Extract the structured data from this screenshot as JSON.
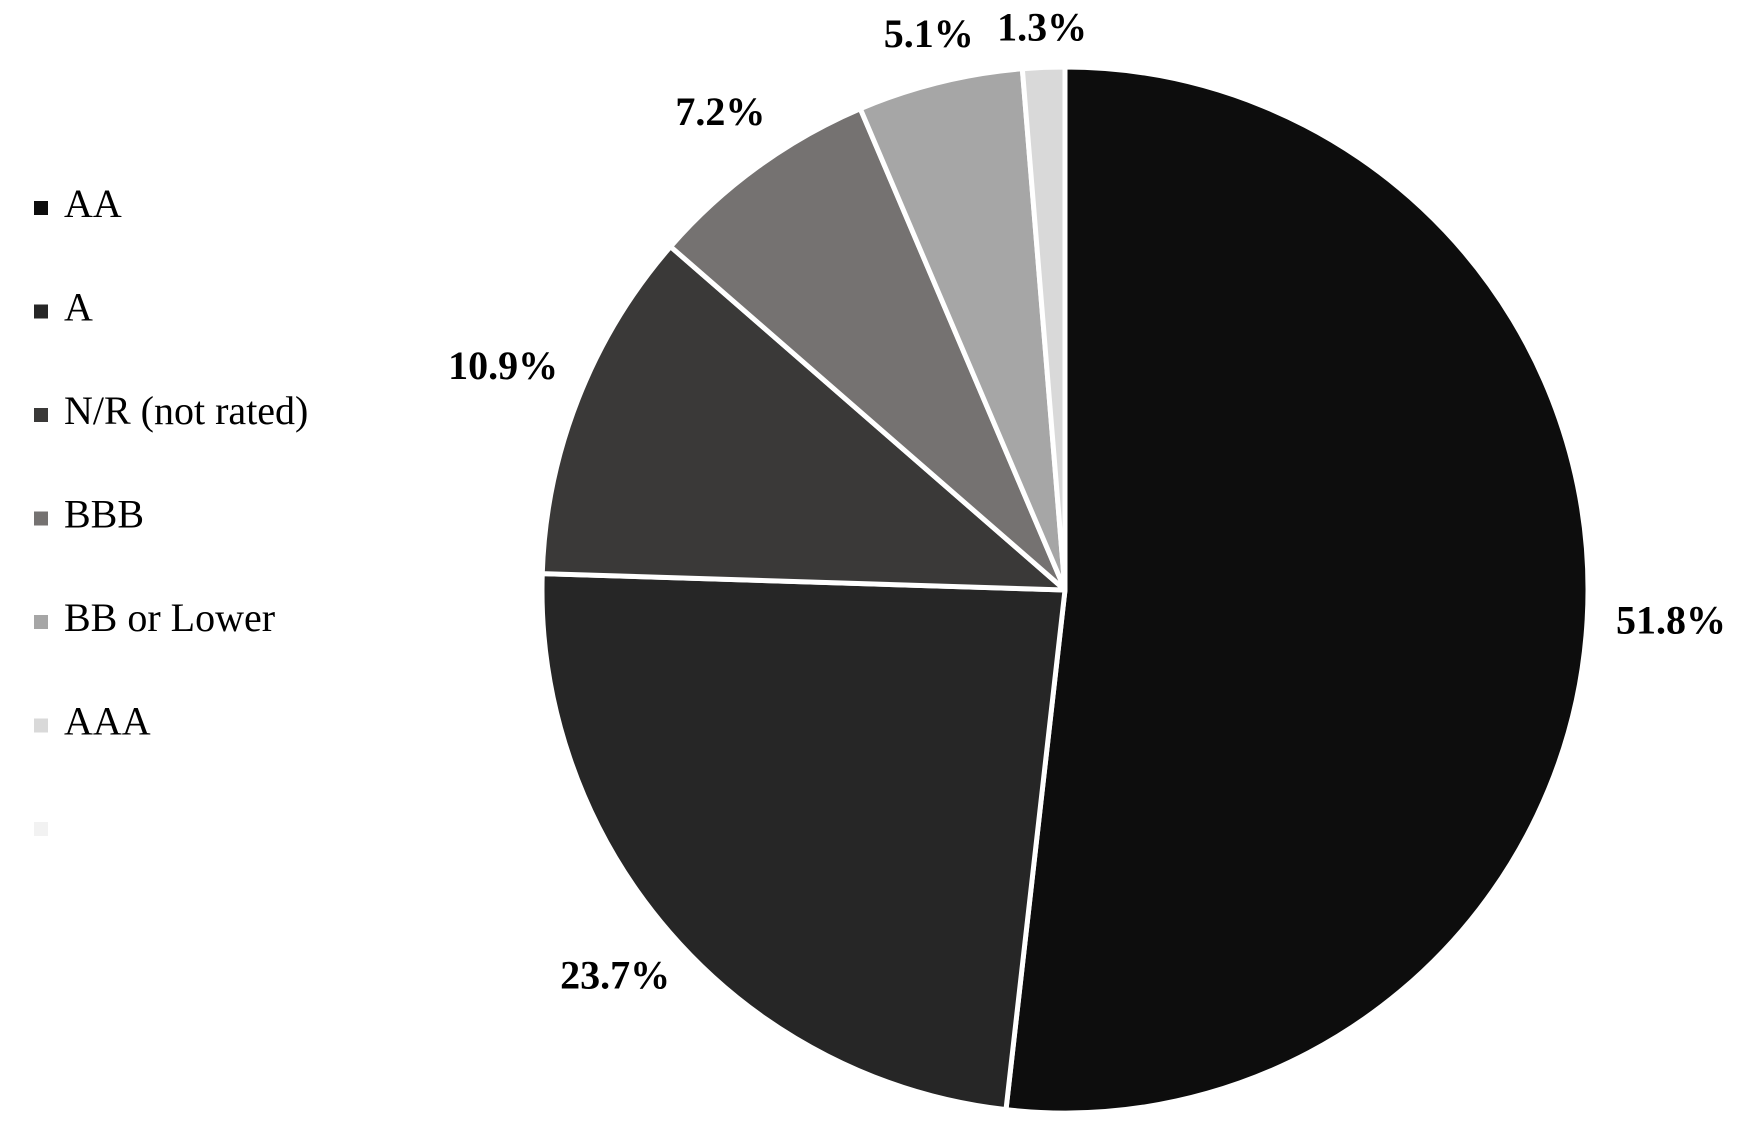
{
  "chart_data": {
    "type": "pie",
    "categories": [
      "AA",
      "A",
      "N/R (not rated)",
      "BBB",
      "BB or Lower",
      "AAA",
      null
    ],
    "values": [
      51.8,
      23.7,
      10.9,
      7.2,
      5.1,
      1.3,
      0
    ],
    "value_labels": [
      "51.8%",
      "23.7%",
      "10.9%",
      "7.2%",
      "5.1%",
      "1.3%",
      null
    ],
    "colors": [
      "#0d0d0d",
      "#262626",
      "#3a3938",
      "#757271",
      "#a6a6a6",
      "#d9d9d9",
      "#f2f2f2"
    ],
    "legend": "left"
  }
}
